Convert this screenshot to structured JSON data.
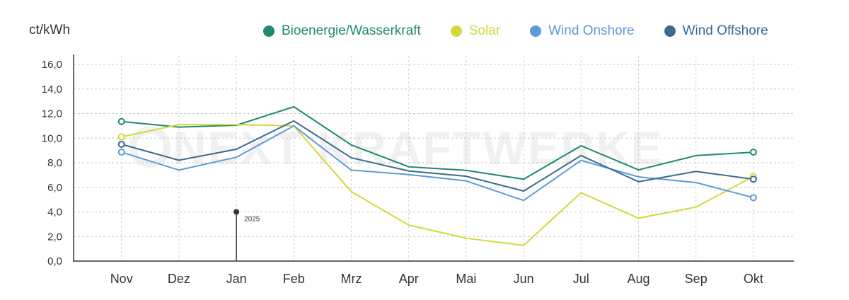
{
  "chart_data": {
    "type": "line",
    "title": "",
    "unit_label": "ct/kWh",
    "xlabel": "",
    "ylabel": "ct/kWh",
    "categories": [
      "Nov",
      "Dez",
      "Jan",
      "Feb",
      "Mrz",
      "Apr",
      "Mai",
      "Jun",
      "Jul",
      "Aug",
      "Sep",
      "Okt"
    ],
    "ylim": [
      0,
      16
    ],
    "yticks": [
      0,
      2,
      4,
      6,
      8,
      10,
      12,
      14,
      16
    ],
    "ytick_labels": [
      "0,0",
      "2,0",
      "4,0",
      "6,0",
      "8,0",
      "10,0",
      "12,0",
      "14,0",
      "16,0"
    ],
    "grid": true,
    "legend_position": "top-right",
    "series": [
      {
        "name": "Bioenergie/Wasserkraft",
        "color": "#1e8a72",
        "values": [
          11.35,
          10.9,
          11.05,
          12.55,
          9.45,
          7.67,
          7.38,
          6.66,
          9.38,
          7.42,
          8.58,
          8.86
        ]
      },
      {
        "name": "Solar",
        "color": "#d3d83c",
        "values": [
          10.1,
          11.1,
          11.1,
          11.0,
          5.65,
          2.93,
          1.86,
          1.28,
          5.56,
          3.49,
          4.39,
          6.89
        ]
      },
      {
        "name": "Wind Onshore",
        "color": "#5b9bd5",
        "values": [
          8.86,
          7.4,
          8.45,
          11.0,
          7.4,
          7.04,
          6.52,
          4.93,
          8.19,
          6.85,
          6.39,
          5.16
        ]
      },
      {
        "name": "Wind Offshore",
        "color": "#3d6a8f",
        "values": [
          9.5,
          8.2,
          9.1,
          11.4,
          8.4,
          7.33,
          6.9,
          5.7,
          8.58,
          6.46,
          7.29,
          6.66
        ]
      }
    ],
    "annotations": [
      {
        "text": "2025",
        "x": "Jan",
        "y": 4.0
      }
    ],
    "watermark": "NEXT KRAFTWERKE"
  }
}
